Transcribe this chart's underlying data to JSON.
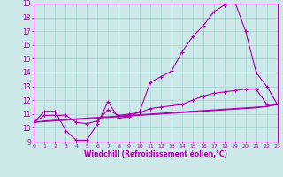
{
  "xlabel": "Windchill (Refroidissement éolien,°C)",
  "background_color": "#cce8e8",
  "grid_color": "#aad4d4",
  "line_color": "#aa00aa",
  "x_ticks": [
    0,
    1,
    2,
    3,
    4,
    5,
    6,
    7,
    8,
    9,
    10,
    11,
    12,
    13,
    14,
    15,
    16,
    17,
    18,
    19,
    20,
    21,
    22,
    23
  ],
  "y_ticks": [
    9,
    10,
    11,
    12,
    13,
    14,
    15,
    16,
    17,
    18,
    19
  ],
  "xlim": [
    0,
    23
  ],
  "ylim": [
    9,
    19
  ],
  "curves": [
    {
      "x": [
        0,
        1,
        2,
        3,
        4,
        5,
        6,
        7,
        8,
        9,
        10,
        11,
        12,
        13,
        14,
        15,
        16,
        17,
        18,
        19,
        20,
        21,
        22,
        23
      ],
      "y": [
        10.4,
        11.2,
        11.2,
        9.8,
        9.1,
        9.1,
        10.3,
        11.9,
        10.7,
        10.8,
        11.2,
        13.3,
        13.7,
        14.1,
        15.5,
        16.6,
        17.4,
        18.4,
        18.9,
        19.1,
        17.0,
        14.0,
        13.0,
        11.7
      ],
      "marker": true
    },
    {
      "x": [
        0,
        1,
        2,
        3,
        4,
        5,
        6,
        7,
        8,
        9,
        10,
        11,
        12,
        13,
        14,
        15,
        16,
        17,
        18,
        19,
        20,
        21,
        22,
        23
      ],
      "y": [
        10.4,
        10.5,
        10.55,
        10.6,
        10.65,
        10.7,
        10.75,
        10.8,
        10.85,
        10.9,
        10.95,
        11.0,
        11.05,
        11.1,
        11.15,
        11.2,
        11.25,
        11.3,
        11.35,
        11.4,
        11.45,
        11.5,
        11.55,
        11.7
      ],
      "marker": false
    },
    {
      "x": [
        0,
        1,
        2,
        3,
        4,
        5,
        6,
        7,
        8,
        9,
        10,
        11,
        12,
        13,
        14,
        15,
        16,
        17,
        18,
        19,
        20,
        21,
        22,
        23
      ],
      "y": [
        10.4,
        10.9,
        10.9,
        10.9,
        10.4,
        10.3,
        10.5,
        11.3,
        10.9,
        11.0,
        11.1,
        11.4,
        11.5,
        11.6,
        11.7,
        12.0,
        12.3,
        12.5,
        12.6,
        12.7,
        12.8,
        12.8,
        11.7,
        11.7
      ],
      "marker": true
    },
    {
      "x": [
        0,
        1,
        2,
        3,
        4,
        5,
        6,
        7,
        8,
        9,
        10,
        11,
        12,
        13,
        14,
        15,
        16,
        17,
        18,
        19,
        20,
        21,
        22,
        23
      ],
      "y": [
        10.4,
        10.45,
        10.5,
        10.55,
        10.6,
        10.65,
        10.7,
        10.75,
        10.8,
        10.85,
        10.9,
        10.95,
        11.0,
        11.05,
        11.1,
        11.15,
        11.2,
        11.25,
        11.3,
        11.35,
        11.4,
        11.45,
        11.55,
        11.7
      ],
      "marker": false
    }
  ]
}
